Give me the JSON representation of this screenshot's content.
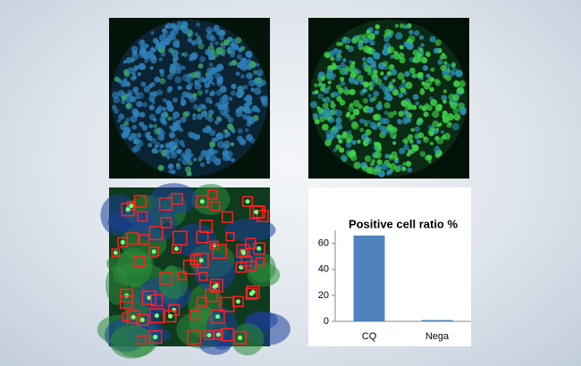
{
  "chart_data": {
    "type": "bar",
    "title": "Positive cell ratio %",
    "categories": [
      "CQ",
      "Nega"
    ],
    "values": [
      66,
      1
    ],
    "color": "#4f81bd",
    "ylim": [
      0,
      70
    ],
    "yticks": [
      0,
      20,
      40,
      60
    ],
    "grid": false
  }
}
